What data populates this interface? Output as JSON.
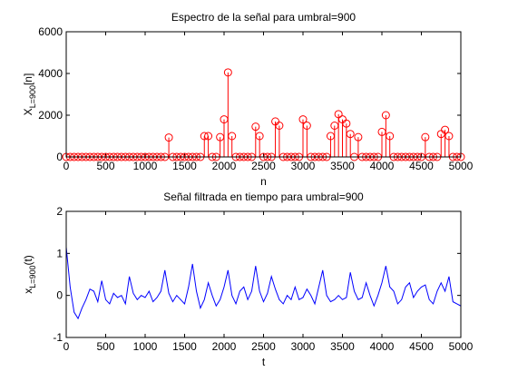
{
  "chart_data": [
    {
      "type": "stem",
      "title": "Espectro de la señal para umbral=900",
      "xlabel": "n",
      "ylabel": [
        "X",
        "L=900",
        "[n]"
      ],
      "color": "#ff0000",
      "x": [
        0,
        50,
        100,
        150,
        200,
        250,
        300,
        350,
        400,
        450,
        500,
        550,
        600,
        650,
        700,
        750,
        800,
        850,
        900,
        950,
        1000,
        1050,
        1100,
        1150,
        1200,
        1250,
        1300,
        1350,
        1400,
        1450,
        1500,
        1550,
        1600,
        1650,
        1700,
        1750,
        1800,
        1850,
        1900,
        1950,
        2000,
        2050,
        2100,
        2150,
        2200,
        2250,
        2300,
        2350,
        2400,
        2450,
        2500,
        2550,
        2600,
        2650,
        2700,
        2750,
        2800,
        2850,
        2900,
        2950,
        3000,
        3050,
        3100,
        3150,
        3200,
        3250,
        3300,
        3350,
        3400,
        3450,
        3500,
        3550,
        3600,
        3650,
        3700,
        3750,
        3800,
        3850,
        3900,
        3950,
        4000,
        4050,
        4100,
        4150,
        4200,
        4250,
        4300,
        4350,
        4400,
        4450,
        4500,
        4550,
        4600,
        4650,
        4700,
        4750,
        4800,
        4850,
        4900,
        4950,
        5000
      ],
      "values": [
        0,
        0,
        0,
        0,
        0,
        0,
        0,
        0,
        0,
        0,
        0,
        0,
        0,
        0,
        0,
        0,
        0,
        0,
        0,
        0,
        0,
        0,
        0,
        0,
        0,
        0,
        930,
        0,
        0,
        0,
        0,
        0,
        0,
        0,
        0,
        1000,
        1000,
        0,
        0,
        950,
        1800,
        4050,
        1000,
        0,
        0,
        0,
        0,
        0,
        1450,
        1000,
        0,
        0,
        0,
        1700,
        1500,
        0,
        0,
        0,
        0,
        0,
        1800,
        1500,
        0,
        0,
        0,
        0,
        0,
        1000,
        1500,
        2050,
        1800,
        1600,
        1100,
        0,
        950,
        0,
        0,
        0,
        0,
        0,
        1200,
        2000,
        1000,
        0,
        0,
        0,
        0,
        0,
        0,
        0,
        0,
        950,
        0,
        0,
        0,
        1100,
        1300,
        1000,
        0,
        0,
        0
      ],
      "xlim": [
        0,
        5000
      ],
      "xticks": [
        0,
        500,
        1000,
        1500,
        2000,
        2500,
        3000,
        3500,
        4000,
        4500,
        5000
      ],
      "ylim": [
        0,
        6000
      ],
      "yticks": [
        0,
        2000,
        4000,
        6000
      ]
    },
    {
      "type": "line",
      "title": "Señal filtrada en tiempo para umbral=900",
      "xlabel": "t",
      "ylabel": [
        "x",
        "L=900",
        "(t)"
      ],
      "color": "#0000ff",
      "x": [
        0,
        50,
        100,
        150,
        200,
        250,
        300,
        350,
        400,
        450,
        500,
        550,
        600,
        650,
        700,
        750,
        800,
        850,
        900,
        950,
        1000,
        1050,
        1100,
        1150,
        1200,
        1250,
        1300,
        1350,
        1400,
        1450,
        1500,
        1550,
        1600,
        1650,
        1700,
        1750,
        1800,
        1850,
        1900,
        1950,
        2000,
        2050,
        2100,
        2150,
        2200,
        2250,
        2300,
        2350,
        2400,
        2450,
        2500,
        2550,
        2600,
        2650,
        2700,
        2750,
        2800,
        2850,
        2900,
        2950,
        3000,
        3050,
        3100,
        3150,
        3200,
        3250,
        3300,
        3350,
        3400,
        3450,
        3500,
        3550,
        3600,
        3650,
        3700,
        3750,
        3800,
        3850,
        3900,
        3950,
        4000,
        4050,
        4100,
        4150,
        4200,
        4250,
        4300,
        4350,
        4400,
        4450,
        4500,
        4550,
        4600,
        4650,
        4700,
        4750,
        4800,
        4850,
        4900,
        4950,
        5000
      ],
      "values": [
        1.15,
        0.2,
        -0.4,
        -0.55,
        -0.3,
        -0.1,
        0.15,
        0.1,
        -0.15,
        0.35,
        -0.1,
        -0.2,
        0.05,
        -0.05,
        0.0,
        -0.2,
        0.45,
        0.05,
        -0.1,
        0.0,
        -0.05,
        0.1,
        -0.15,
        -0.05,
        0.1,
        0.6,
        0.05,
        -0.15,
        0.0,
        -0.1,
        -0.2,
        0.2,
        0.75,
        0.1,
        -0.3,
        -0.1,
        0.3,
        0.0,
        -0.25,
        -0.1,
        0.2,
        0.6,
        0.0,
        -0.2,
        0.1,
        0.2,
        -0.1,
        0.1,
        0.7,
        0.1,
        -0.15,
        0.05,
        0.45,
        0.15,
        -0.1,
        -0.2,
        0.0,
        -0.1,
        0.2,
        -0.1,
        -0.05,
        0.15,
        0.0,
        -0.2,
        0.2,
        0.6,
        0.0,
        -0.15,
        -0.1,
        0.0,
        -0.1,
        -0.05,
        0.55,
        0.1,
        -0.1,
        -0.05,
        0.3,
        0.0,
        -0.25,
        0.0,
        0.3,
        0.7,
        0.2,
        0.1,
        -0.2,
        -0.1,
        0.2,
        0.3,
        -0.05,
        0.1,
        0.2,
        0.25,
        -0.1,
        -0.2,
        0.1,
        0.3,
        0.1,
        0.45,
        -0.15,
        -0.2,
        -0.25
      ],
      "xlim": [
        0,
        5000
      ],
      "xticks": [
        0,
        500,
        1000,
        1500,
        2000,
        2500,
        3000,
        3500,
        4000,
        4500,
        5000
      ],
      "ylim": [
        -1,
        2
      ],
      "yticks": [
        -1,
        0,
        1,
        2
      ]
    }
  ]
}
